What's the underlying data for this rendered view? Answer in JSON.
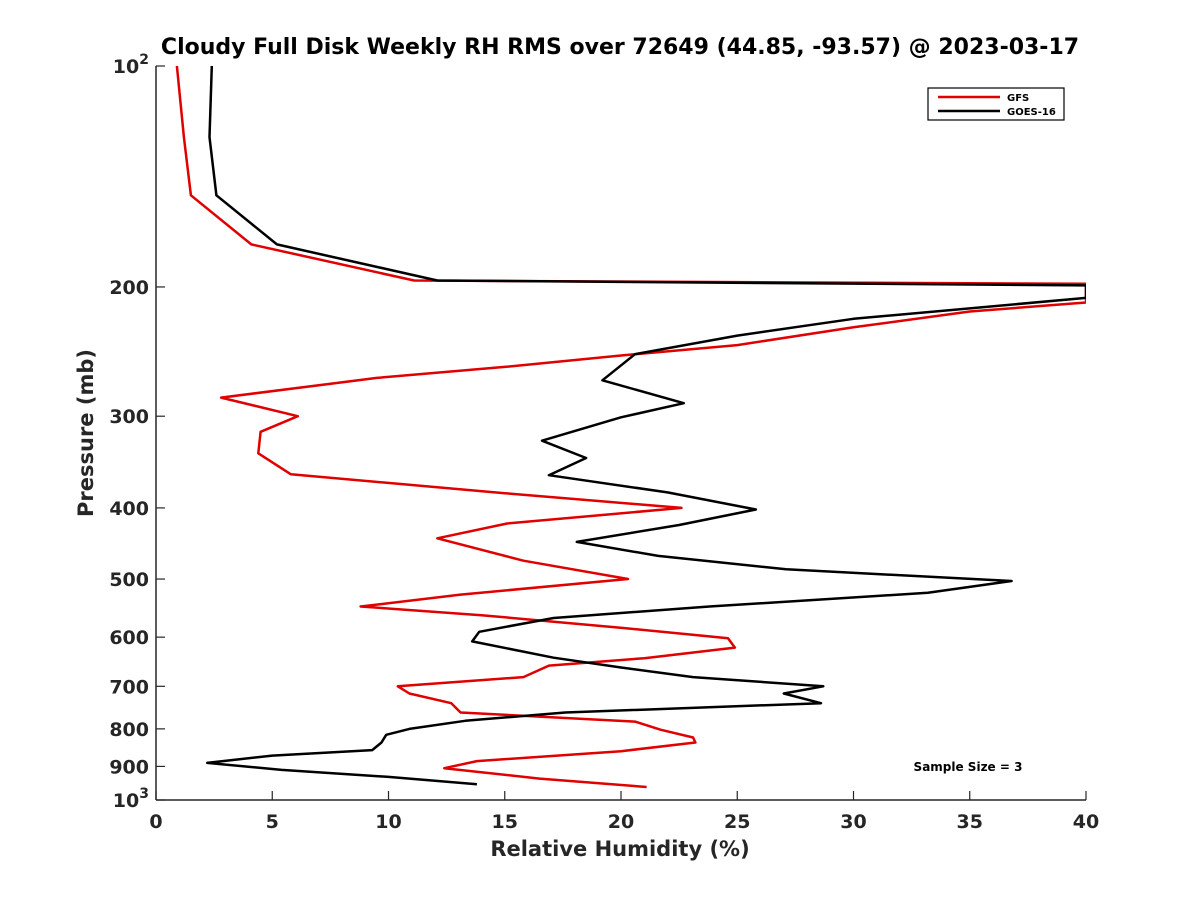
{
  "chart_data": {
    "type": "line",
    "title": "Cloudy Full Disk Weekly RH RMS over 72649 (44.85, -93.57) @ 2023-03-17",
    "xlabel": "Relative Humidity (%)",
    "ylabel": "Pressure (mb)",
    "xlim": [
      0,
      40
    ],
    "ylim": [
      100,
      1000
    ],
    "y_scale": "log",
    "y_reversed": true,
    "x_ticks": [
      "0",
      "5",
      "10",
      "15",
      "20",
      "25",
      "30",
      "35",
      "40"
    ],
    "y_ticks": [
      {
        "value": 100,
        "label": "10",
        "sup": "2"
      },
      {
        "value": 200,
        "label": "200",
        "sup": ""
      },
      {
        "value": 300,
        "label": "300",
        "sup": ""
      },
      {
        "value": 400,
        "label": "400",
        "sup": ""
      },
      {
        "value": 500,
        "label": "500",
        "sup": ""
      },
      {
        "value": 600,
        "label": "600",
        "sup": ""
      },
      {
        "value": 700,
        "label": "700",
        "sup": ""
      },
      {
        "value": 800,
        "label": "800",
        "sup": ""
      },
      {
        "value": 900,
        "label": "900",
        "sup": ""
      },
      {
        "value": 1000,
        "label": "10",
        "sup": "3"
      }
    ],
    "grid": false,
    "legend_position": "top-right",
    "annotation": "Sample Size = 3",
    "series": [
      {
        "name": "GFS",
        "color": "#e00000",
        "points": [
          [
            0.9,
            100
          ],
          [
            1.2,
            125
          ],
          [
            1.5,
            150
          ],
          [
            4.1,
            175
          ],
          [
            11.1,
            196
          ],
          [
            40,
            198
          ],
          [
            40,
            210
          ],
          [
            35,
            216
          ],
          [
            30,
            227
          ],
          [
            25,
            240
          ],
          [
            20,
            248
          ],
          [
            15,
            257
          ],
          [
            9.5,
            266
          ],
          [
            2.8,
            283
          ],
          [
            6.1,
            300
          ],
          [
            4.5,
            315
          ],
          [
            4.4,
            337
          ],
          [
            5.8,
            360
          ],
          [
            15.0,
            382
          ],
          [
            22.6,
            400
          ],
          [
            15.1,
            420
          ],
          [
            12.1,
            440
          ],
          [
            15.8,
            472
          ],
          [
            20.3,
            500
          ],
          [
            13.1,
            525
          ],
          [
            8.8,
            545
          ],
          [
            14.0,
            560
          ],
          [
            20.1,
            583
          ],
          [
            24.6,
            602
          ],
          [
            24.9,
            620
          ],
          [
            21.0,
            641
          ],
          [
            16.9,
            656
          ],
          [
            15.8,
            680
          ],
          [
            10.4,
            700
          ],
          [
            10.9,
            716
          ],
          [
            12.7,
            738
          ],
          [
            13.1,
            760
          ],
          [
            20.6,
            782
          ],
          [
            21.7,
            802
          ],
          [
            23.1,
            822
          ],
          [
            23.2,
            835
          ],
          [
            20.0,
            858
          ],
          [
            13.8,
            885
          ],
          [
            12.4,
            905
          ],
          [
            16.5,
            935
          ],
          [
            21.1,
            960
          ]
        ]
      },
      {
        "name": "GOES-16",
        "color": "#000000",
        "points": [
          [
            2.4,
            100
          ],
          [
            2.3,
            125
          ],
          [
            2.6,
            150
          ],
          [
            5.2,
            175
          ],
          [
            12.1,
            196
          ],
          [
            40,
            199
          ],
          [
            40,
            207
          ],
          [
            30,
            221
          ],
          [
            25,
            233
          ],
          [
            20.6,
            247
          ],
          [
            19.2,
            268
          ],
          [
            22.7,
            288
          ],
          [
            20.0,
            301
          ],
          [
            16.6,
            324
          ],
          [
            18.5,
            342
          ],
          [
            16.9,
            361
          ],
          [
            22.0,
            381
          ],
          [
            25.8,
            402
          ],
          [
            22.5,
            422
          ],
          [
            18.1,
            445
          ],
          [
            21.6,
            465
          ],
          [
            27.1,
            485
          ],
          [
            36.8,
            503
          ],
          [
            33.2,
            522
          ],
          [
            23.8,
            545
          ],
          [
            17.1,
            565
          ],
          [
            13.9,
            590
          ],
          [
            13.6,
            608
          ],
          [
            17.1,
            640
          ],
          [
            20.0,
            660
          ],
          [
            23.1,
            680
          ],
          [
            28.7,
            700
          ],
          [
            27.0,
            716
          ],
          [
            28.6,
            738
          ],
          [
            17.6,
            760
          ],
          [
            13.3,
            780
          ],
          [
            10.9,
            800
          ],
          [
            9.9,
            815
          ],
          [
            9.7,
            835
          ],
          [
            9.3,
            855
          ],
          [
            5.0,
            870
          ],
          [
            2.2,
            890
          ],
          [
            5.4,
            910
          ],
          [
            10.0,
            930
          ],
          [
            13.8,
            952
          ]
        ]
      }
    ]
  }
}
